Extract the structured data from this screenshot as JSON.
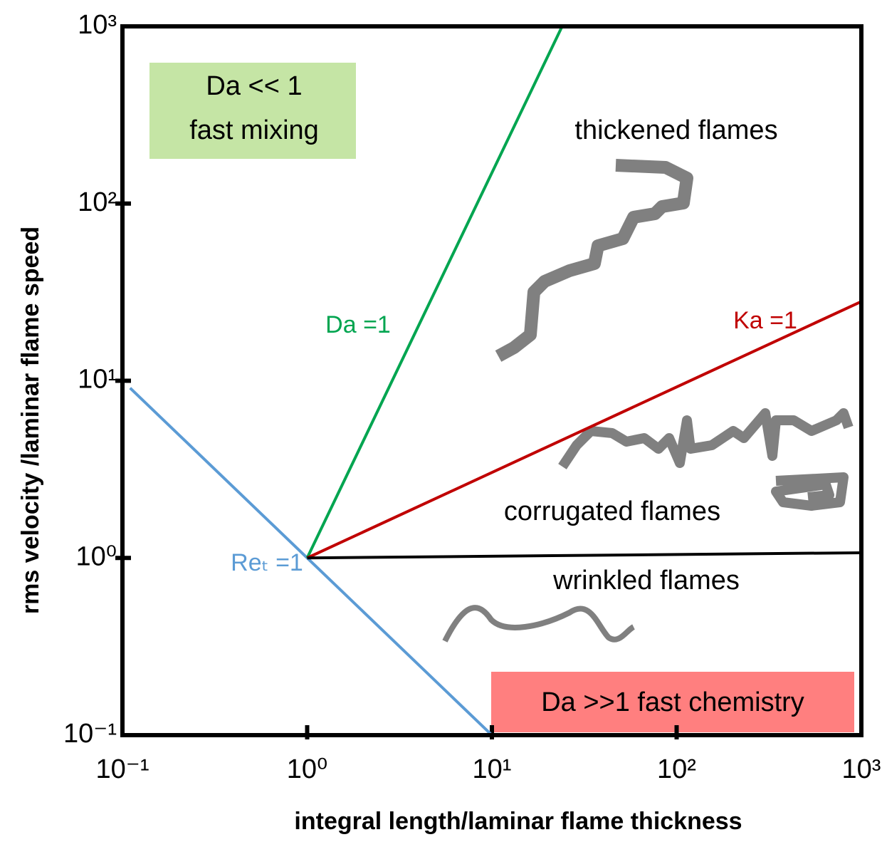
{
  "chart_data": {
    "type": "line",
    "xlabel": "integral length/laminar flame thickness",
    "ylabel": "rms velocity /laminar flame speed",
    "log_x": true,
    "log_y": true,
    "xlim": [
      0.1,
      1000
    ],
    "ylim": [
      0.1,
      1000
    ],
    "xticks": [
      {
        "value": 0.1,
        "label": "10⁻¹"
      },
      {
        "value": 1,
        "label": "10⁰"
      },
      {
        "value": 10,
        "label": "10¹"
      },
      {
        "value": 100,
        "label": "10²"
      },
      {
        "value": 1000,
        "label": "10³"
      }
    ],
    "yticks": [
      {
        "value": 0.1,
        "label": "10⁻¹"
      },
      {
        "value": 1,
        "label": "10⁰"
      },
      {
        "value": 10,
        "label": "10¹"
      },
      {
        "value": 100,
        "label": "10²"
      },
      {
        "value": 1000,
        "label": "10³"
      }
    ],
    "series": [
      {
        "name": "Reₜ =1",
        "color": "#5b9bd5",
        "x": [
          0.11,
          10
        ],
        "values": [
          9.1,
          0.1
        ]
      },
      {
        "name": "Da =1",
        "color": "#00a550",
        "x": [
          1,
          24
        ],
        "values": [
          1,
          1000
        ]
      },
      {
        "name": "Ka =1",
        "color": "#c00000",
        "x": [
          1,
          1000
        ],
        "values": [
          1,
          28
        ]
      },
      {
        "color": "#000000",
        "x": [
          1,
          1000
        ],
        "values": [
          1,
          1.07
        ]
      }
    ],
    "annotations": {
      "slow_chemistry": [
        "Da << 1",
        "fast mixing"
      ],
      "fast_chemistry": "Da >>1 fast chemistry",
      "thickened": "thickened flames",
      "corrugated": "corrugated flames",
      "wrinkled": "wrinkled flames"
    }
  }
}
